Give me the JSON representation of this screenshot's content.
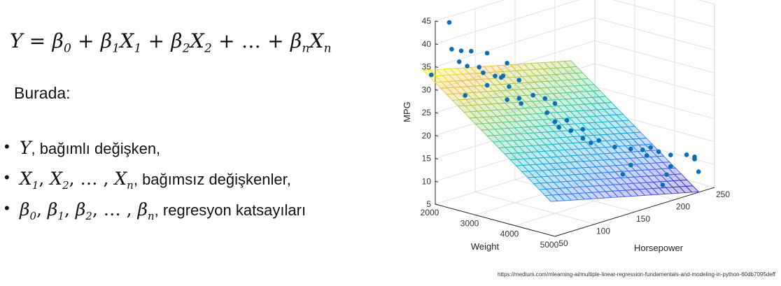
{
  "equation": {
    "y": "Y",
    "eq": "=",
    "b0": "β",
    "b0_sub": "0",
    "plus1": "+",
    "b1": "β",
    "b1_sub": "1",
    "x1": "X",
    "x1_sub": "1",
    "plus2": "+",
    "b2": "β",
    "b2_sub": "2",
    "x2": "X",
    "x2_sub": "2",
    "plus3": "+",
    "dots": "…",
    "plus4": "+",
    "bn": "β",
    "bn_sub": "n",
    "xn": "X",
    "xn_sub": "n"
  },
  "intro": "Burada:",
  "definitions": [
    {
      "math": "Y",
      "text": ", bağımlı değişken,"
    },
    {
      "math_x": "X",
      "s1": "1",
      "s2": "2",
      "sn": "n",
      "text": ", bağımsız değişkenler,"
    },
    {
      "math_b": "β",
      "s0": "0",
      "s1": "1",
      "s2": "2",
      "sn": "n",
      "text": ", regresyon katsayıları"
    }
  ],
  "chart_data": {
    "type": "scatter",
    "title": "",
    "xlabel": "Weight",
    "ylabel": "Horsepower",
    "zlabel": "MPG",
    "xlim": [
      2000,
      5000
    ],
    "ylim": [
      50,
      250
    ],
    "zlim": [
      5,
      45
    ],
    "x_ticks": [
      "2000",
      "3000",
      "4000",
      "5000"
    ],
    "y_ticks": [
      "50",
      "100",
      "150",
      "200",
      "250"
    ],
    "z_ticks": [
      "5",
      "10",
      "15",
      "20",
      "25",
      "30",
      "35",
      "40",
      "45"
    ],
    "colormap": "parula",
    "point_color": "#0b6fb5",
    "surface": {
      "plane": "MPG = 47.77 - 0.0066*Weight - 0.042*Horsepower",
      "weight_range": [
        1800,
        5000
      ],
      "horsepower_range": [
        45,
        230
      ]
    },
    "points": [
      {
        "weight": 1950,
        "hp": 70,
        "mpg": 43.5
      },
      {
        "weight": 2050,
        "hp": 68,
        "mpg": 38.0
      },
      {
        "weight": 2150,
        "hp": 75,
        "mpg": 37.5
      },
      {
        "weight": 2100,
        "hp": 90,
        "mpg": 36.5
      },
      {
        "weight": 2300,
        "hp": 65,
        "mpg": 36.0
      },
      {
        "weight": 2600,
        "hp": 60,
        "mpg": 36.0
      },
      {
        "weight": 2100,
        "hp": 110,
        "mpg": 35.0
      },
      {
        "weight": 2400,
        "hp": 85,
        "mpg": 34.0
      },
      {
        "weight": 1900,
        "hp": 50,
        "mpg": 33.0
      },
      {
        "weight": 2300,
        "hp": 95,
        "mpg": 32.0
      },
      {
        "weight": 2800,
        "hp": 75,
        "mpg": 31.5
      },
      {
        "weight": 2500,
        "hp": 110,
        "mpg": 31.0
      },
      {
        "weight": 2200,
        "hp": 115,
        "mpg": 30.0
      },
      {
        "weight": 2700,
        "hp": 120,
        "mpg": 30.0
      },
      {
        "weight": 2050,
        "hp": 130,
        "mpg": 28.5
      },
      {
        "weight": 2450,
        "hp": 120,
        "mpg": 28.0
      },
      {
        "weight": 2900,
        "hp": 110,
        "mpg": 27.0
      },
      {
        "weight": 2750,
        "hp": 135,
        "mpg": 26.0
      },
      {
        "weight": 2950,
        "hp": 140,
        "mpg": 25.5
      },
      {
        "weight": 1850,
        "hp": 95,
        "mpg": 26.0
      },
      {
        "weight": 2200,
        "hp": 130,
        "mpg": 24.0
      },
      {
        "weight": 3000,
        "hp": 150,
        "mpg": 24.0
      },
      {
        "weight": 3200,
        "hp": 80,
        "mpg": 37.0
      },
      {
        "weight": 2350,
        "hp": 140,
        "mpg": 23.0
      },
      {
        "weight": 3400,
        "hp": 130,
        "mpg": 22.0
      },
      {
        "weight": 3300,
        "hp": 150,
        "mpg": 21.0
      },
      {
        "weight": 2600,
        "hp": 160,
        "mpg": 20.5
      },
      {
        "weight": 3600,
        "hp": 140,
        "mpg": 20.0
      },
      {
        "weight": 3500,
        "hp": 160,
        "mpg": 19.0
      },
      {
        "weight": 3700,
        "hp": 150,
        "mpg": 18.0
      },
      {
        "weight": 3900,
        "hp": 150,
        "mpg": 17.5
      },
      {
        "weight": 3800,
        "hp": 165,
        "mpg": 17.0
      },
      {
        "weight": 4100,
        "hp": 170,
        "mpg": 16.0
      },
      {
        "weight": 4300,
        "hp": 180,
        "mpg": 15.5
      },
      {
        "weight": 2700,
        "hp": 170,
        "mpg": 17.0
      },
      {
        "weight": 4200,
        "hp": 200,
        "mpg": 14.0
      },
      {
        "weight": 4100,
        "hp": 215,
        "mpg": 13.5
      },
      {
        "weight": 4500,
        "hp": 190,
        "mpg": 14.0
      },
      {
        "weight": 4400,
        "hp": 210,
        "mpg": 13.5
      },
      {
        "weight": 4600,
        "hp": 215,
        "mpg": 13.0
      },
      {
        "weight": 4800,
        "hp": 225,
        "mpg": 13.0
      },
      {
        "weight": 4900,
        "hp": 230,
        "mpg": 12.5
      },
      {
        "weight": 5000,
        "hp": 225,
        "mpg": 12.5
      },
      {
        "weight": 4700,
        "hp": 210,
        "mpg": 11.0
      },
      {
        "weight": 4800,
        "hp": 200,
        "mpg": 10.0
      },
      {
        "weight": 5000,
        "hp": 230,
        "mpg": 9.5
      },
      {
        "weight": 4900,
        "hp": 190,
        "mpg": 8.5
      },
      {
        "weight": 3700,
        "hp": 210,
        "mpg": 9.0
      },
      {
        "weight": 4400,
        "hp": 165,
        "mpg": 11.0
      }
    ]
  },
  "source_url": "https://medium.com/mlearning-ai/multiple-linear-regression-fundamentals-and-modeling-in-python-60db7095deff"
}
